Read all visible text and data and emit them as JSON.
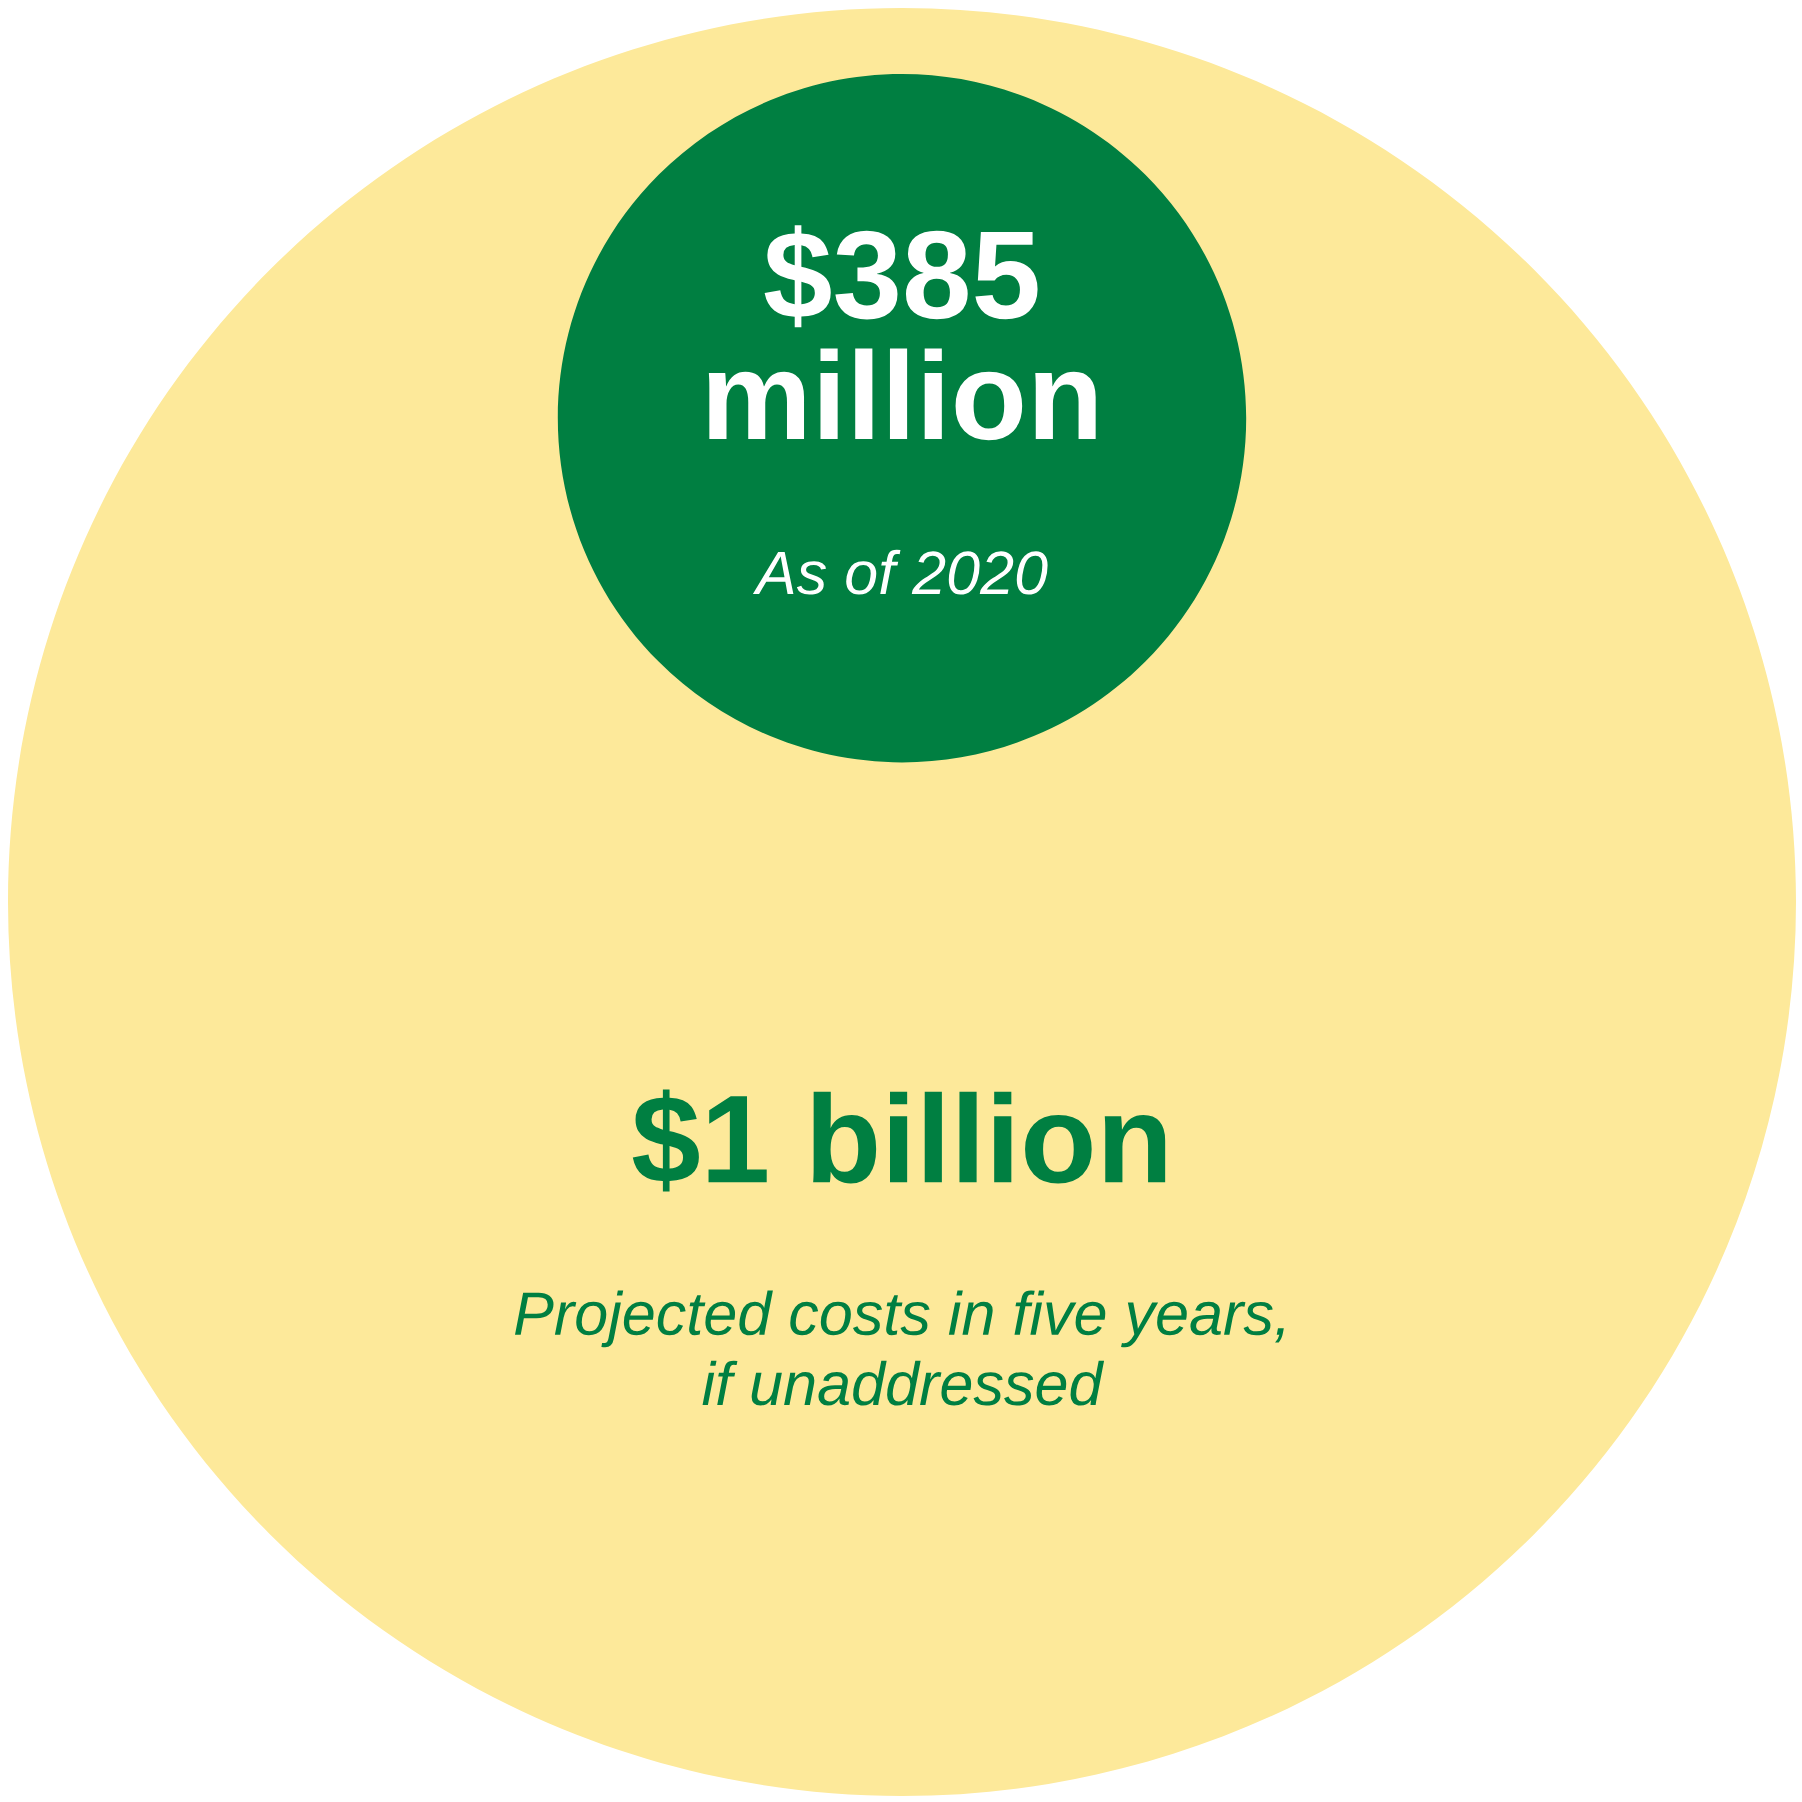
{
  "chart_data": {
    "type": "other",
    "categories": [
      "As of 2020",
      "Projected costs in five years,\nif unaddressed"
    ],
    "values": [
      385000000,
      1000000000
    ],
    "value_labels": [
      "$385\nmillion",
      "$1 billion"
    ],
    "colors": [
      "#007f41",
      "#fde99a"
    ]
  }
}
